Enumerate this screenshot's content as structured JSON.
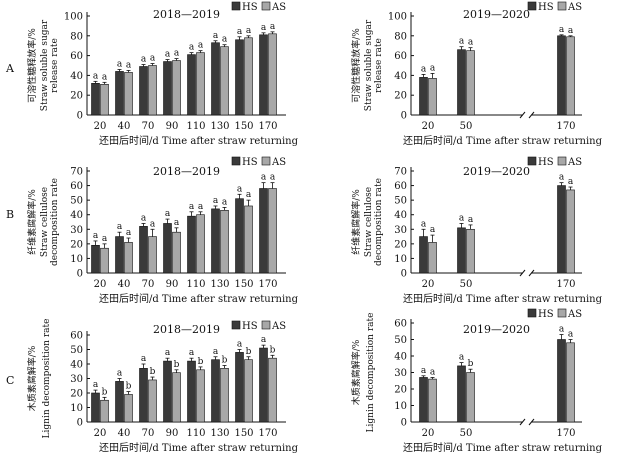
{
  "figure": {
    "row_labels": [
      "A",
      "B",
      "C"
    ],
    "x_axis_label": "还田后时间/d  Time after straw returning"
  },
  "chart_data": [
    {
      "id": "A1",
      "type": "bar",
      "title": "2018—2019",
      "xlabel": "还田后时间/d  Time after straw returning",
      "ylabel_cn": "可溶性糖释放率/%",
      "ylabel_en": "Straw soluble sugar release rate",
      "ylim": [
        0,
        100
      ],
      "yticks": [
        0,
        20,
        40,
        60,
        80,
        100
      ],
      "categories": [
        "20",
        "40",
        "70",
        "90",
        "110",
        "130",
        "150",
        "170"
      ],
      "legend": "top-right",
      "series": [
        {
          "name": "HS",
          "color": "#3a3a3a",
          "values": [
            32,
            44,
            49,
            54,
            61,
            73,
            76,
            81
          ],
          "errors": [
            2,
            2,
            2,
            2,
            2,
            2,
            3,
            2
          ],
          "letters": [
            "a",
            "a",
            "a",
            "a",
            "a",
            "a",
            "a",
            "a"
          ]
        },
        {
          "name": "AS",
          "color": "#a8a8a8",
          "values": [
            31,
            43,
            50,
            55,
            63,
            69,
            78,
            82
          ],
          "errors": [
            2,
            2,
            2,
            2,
            2,
            2,
            2,
            2
          ],
          "letters": [
            "a",
            "a",
            "a",
            "a",
            "a",
            "a",
            "a",
            "a"
          ]
        }
      ]
    },
    {
      "id": "A2",
      "type": "bar",
      "title": "2019—2020",
      "xlabel": "还田后时间/d  Time after straw returning",
      "ylabel_cn": "可溶性糖释放率/%",
      "ylabel_en": "Straw soluble sugar release rate",
      "ylim": [
        0,
        100
      ],
      "yticks": [
        0,
        20,
        40,
        60,
        80,
        100
      ],
      "categories": [
        "20",
        "50",
        "170"
      ],
      "axis_break": true,
      "legend": "top-right",
      "series": [
        {
          "name": "HS",
          "color": "#3a3a3a",
          "values": [
            38,
            66,
            80
          ],
          "errors": [
            3,
            3,
            1
          ],
          "letters": [
            "a",
            "a",
            "a"
          ]
        },
        {
          "name": "AS",
          "color": "#a8a8a8",
          "values": [
            37,
            65,
            79
          ],
          "errors": [
            5,
            3,
            1
          ],
          "letters": [
            "a",
            "a",
            "a"
          ]
        }
      ]
    },
    {
      "id": "B1",
      "type": "bar",
      "title": "2018—2019",
      "xlabel": "还田后时间/d  Time after straw returning",
      "ylabel_cn": "纤维素腐解率/%",
      "ylabel_en": "Straw cellulose decomposition rate",
      "ylim": [
        0,
        70
      ],
      "yticks": [
        0,
        10,
        20,
        30,
        40,
        50,
        60,
        70
      ],
      "categories": [
        "20",
        "40",
        "70",
        "90",
        "110",
        "130",
        "150",
        "170"
      ],
      "legend": "top-right",
      "series": [
        {
          "name": "HS",
          "color": "#3a3a3a",
          "values": [
            19,
            25,
            32,
            34,
            39,
            44,
            51,
            58
          ],
          "errors": [
            3,
            3,
            2,
            3,
            3,
            2,
            3,
            4
          ],
          "letters": [
            "a",
            "a",
            "a",
            "a",
            "a",
            "a",
            "a",
            "a"
          ]
        },
        {
          "name": "AS",
          "color": "#a8a8a8",
          "values": [
            17,
            21,
            25,
            28,
            40,
            43,
            46,
            58
          ],
          "errors": [
            3,
            3,
            5,
            3,
            2,
            2,
            4,
            4
          ],
          "letters": [
            "a",
            "a",
            "a",
            "a",
            "a",
            "a",
            "a",
            "a"
          ]
        }
      ]
    },
    {
      "id": "B2",
      "type": "bar",
      "title": "2019—2020",
      "xlabel": "还田后时间/d  Time after straw returning",
      "ylabel_cn": "纤维素腐解率/%",
      "ylabel_en": "Straw cellulose decomposition rate",
      "ylim": [
        0,
        70
      ],
      "yticks": [
        0,
        10,
        20,
        30,
        40,
        50,
        60,
        70
      ],
      "categories": [
        "20",
        "50",
        "170"
      ],
      "axis_break": true,
      "legend": "top-right",
      "series": [
        {
          "name": "HS",
          "color": "#3a3a3a",
          "values": [
            25,
            31,
            60
          ],
          "errors": [
            5,
            3,
            2
          ],
          "letters": [
            "a",
            "a",
            "a"
          ]
        },
        {
          "name": "AS",
          "color": "#a8a8a8",
          "values": [
            21,
            30,
            57
          ],
          "errors": [
            5,
            3,
            2
          ],
          "letters": [
            "a",
            "a",
            "a"
          ]
        }
      ]
    },
    {
      "id": "C1",
      "type": "bar",
      "title": "2018—2019",
      "xlabel": "还田后时间/d  Time after straw returning",
      "ylabel_cn": "木质素腐解率/%",
      "ylabel_en": "Lignin decomposition rate",
      "ylim": [
        0,
        60
      ],
      "yticks": [
        0,
        10,
        20,
        30,
        40,
        50,
        60
      ],
      "categories": [
        "20",
        "40",
        "70",
        "90",
        "110",
        "130",
        "150",
        "170"
      ],
      "legend": "top-right",
      "series": [
        {
          "name": "HS",
          "color": "#3a3a3a",
          "values": [
            20,
            28,
            37,
            42,
            42,
            43,
            48,
            51
          ],
          "errors": [
            2,
            2,
            3,
            2,
            2,
            2,
            2,
            2
          ],
          "letters": [
            "a",
            "a",
            "a",
            "a",
            "a",
            "a",
            "a",
            "a"
          ]
        },
        {
          "name": "AS",
          "color": "#a8a8a8",
          "values": [
            15,
            19,
            29,
            34,
            36,
            37,
            43,
            44
          ],
          "errors": [
            2,
            2,
            2,
            2,
            2,
            2,
            2,
            2
          ],
          "letters": [
            "b",
            "b",
            "b",
            "b",
            "b",
            "b",
            "b",
            "b"
          ]
        }
      ]
    },
    {
      "id": "C2",
      "type": "bar",
      "title": "2019—2020",
      "xlabel": "还田后时间/d  Time after straw returning",
      "ylabel_cn": "木质素腐解率/%",
      "ylabel_en": "Lignin decomposition rate",
      "ylim": [
        0,
        60
      ],
      "yticks": [
        0,
        10,
        20,
        30,
        40,
        50,
        60
      ],
      "categories": [
        "20",
        "50",
        "170"
      ],
      "axis_break": true,
      "legend": "top-right",
      "series": [
        {
          "name": "HS",
          "color": "#3a3a3a",
          "values": [
            27,
            34,
            50
          ],
          "errors": [
            1,
            2,
            3
          ],
          "letters": [
            "a",
            "a",
            "a"
          ]
        },
        {
          "name": "AS",
          "color": "#a8a8a8",
          "values": [
            26,
            30,
            48
          ],
          "errors": [
            1,
            2,
            2
          ],
          "letters": [
            "a",
            "b",
            "a"
          ]
        }
      ]
    }
  ]
}
